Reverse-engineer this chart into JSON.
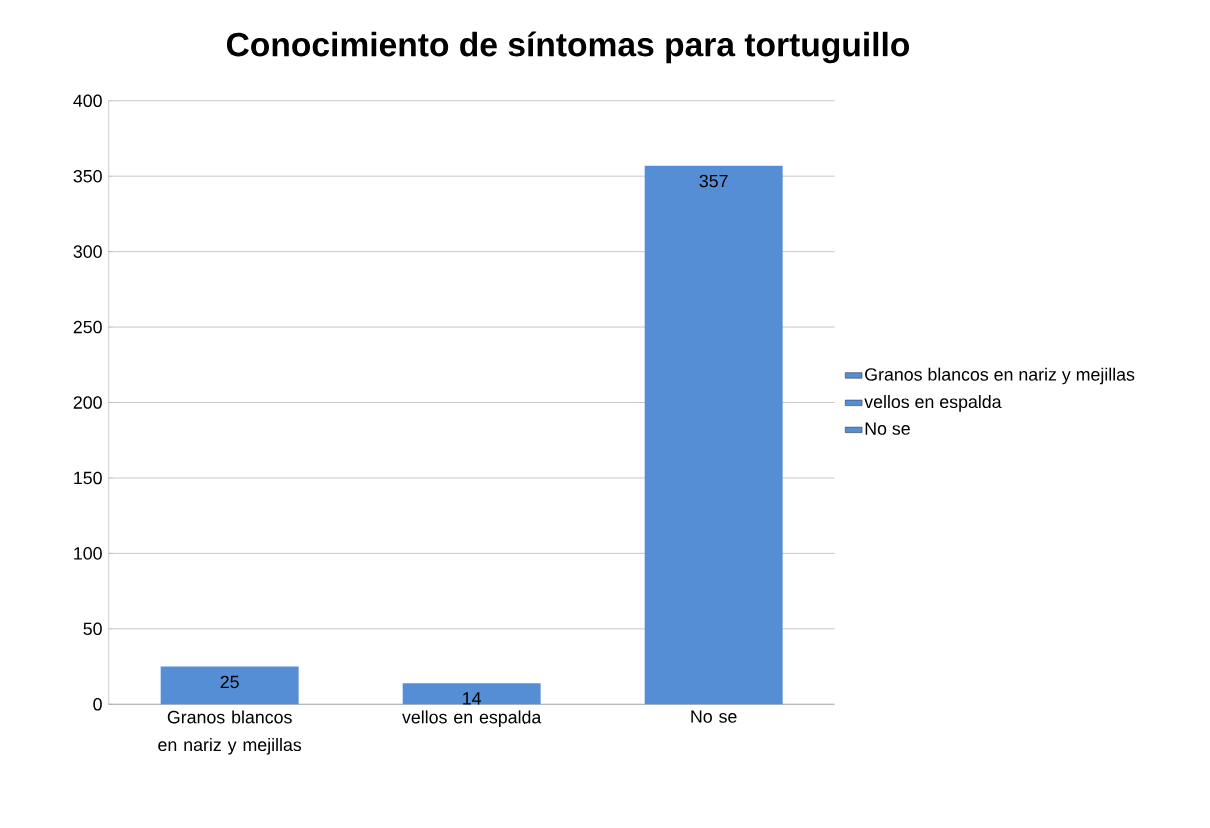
{
  "chart_data": {
    "type": "bar",
    "title": "Conocimiento de síntomas para tortuguillo",
    "categories": [
      "Granos blancos en nariz y mejillas",
      "vellos en espalda",
      "No se"
    ],
    "series": [
      {
        "name": "Granos blancos en nariz y mejillas",
        "color": "#558ed5",
        "values": [
          25,
          null,
          null
        ]
      },
      {
        "name": "vellos en espalda",
        "color": "#558ed5",
        "values": [
          null,
          14,
          null
        ]
      },
      {
        "name": "No se",
        "color": "#558ed5",
        "values": [
          null,
          null,
          357
        ]
      }
    ],
    "ylim": [
      0,
      400
    ],
    "yticks": [
      0,
      50,
      100,
      150,
      200,
      250,
      300,
      350,
      400
    ],
    "grid": "y",
    "legend": "right",
    "data_labels": true
  }
}
